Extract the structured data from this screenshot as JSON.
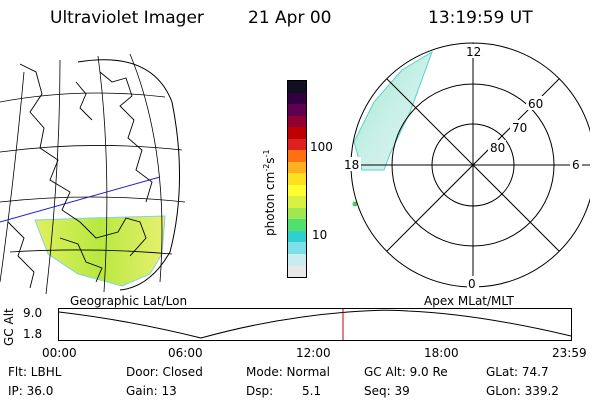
{
  "header": {
    "title": "Ultraviolet Imager",
    "date": "21 Apr 00",
    "time": "13:19:59 UT"
  },
  "colorbar": {
    "unit": "photon cm",
    "unit_sup1": "-2",
    "unit_mid": "s",
    "unit_sup2": "-1",
    "tick_high": "100",
    "tick_low": "10",
    "colors": [
      "#e8e8e8",
      "#c8ecf0",
      "#7de0e8",
      "#30d0d0",
      "#50e070",
      "#a0e850",
      "#d8f040",
      "#ffff30",
      "#ffe020",
      "#ffb020",
      "#ff7010",
      "#e02020",
      "#c00000",
      "#900030",
      "#600050",
      "#300040",
      "#101020"
    ]
  },
  "polar": {
    "lat_labels": [
      "60",
      "70",
      "80"
    ],
    "mlt_labels": {
      "top": "12",
      "left": "18",
      "right": "6",
      "bottom": "0"
    }
  },
  "panels": {
    "left_label": "Geographic Lat/Lon",
    "right_label": "Apex MLat/MLT"
  },
  "orbit": {
    "ylabel": "GC Alt",
    "y_top": "9.0",
    "y_bottom": "1.8",
    "time_ticks": [
      "00:00",
      "06:00",
      "12:00",
      "18:00",
      "23:59"
    ]
  },
  "info": {
    "flt": "Flt: LBHL",
    "ip": "IP: 36.0",
    "door": "Door: Closed",
    "gain": "Gain: 13",
    "mode": "Mode: Normal",
    "dsp_label": "Dsp:",
    "dsp_value": "5.1",
    "gcalt": "GC Alt: 9.0 Re",
    "seq": "Seq: 39",
    "glat": "GLat:  74.7",
    "glon": "GLon: 339.2"
  }
}
